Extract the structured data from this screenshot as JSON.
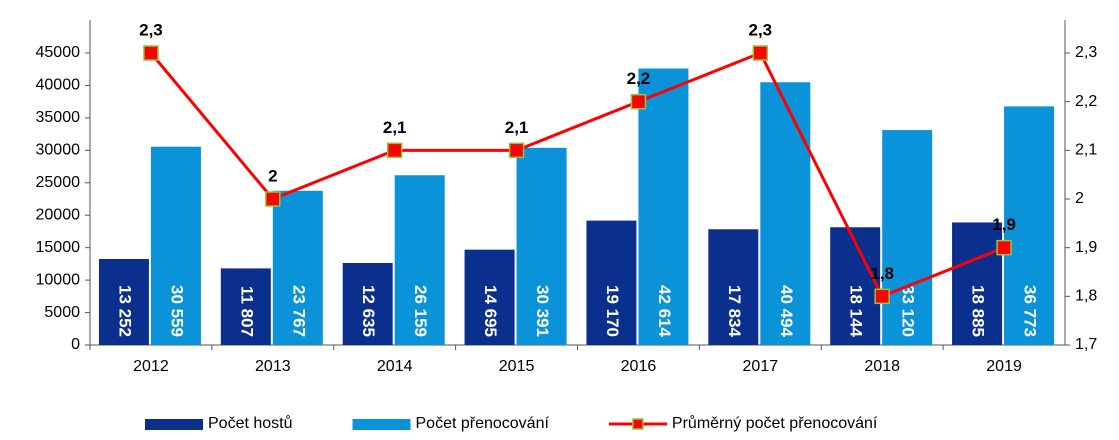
{
  "chart_data": {
    "type": "bar",
    "categories": [
      "2012",
      "2013",
      "2014",
      "2015",
      "2016",
      "2017",
      "2018",
      "2019"
    ],
    "series": [
      {
        "name": "Počet hostů",
        "type": "bar",
        "color": "#0a2f8c",
        "values": [
          13252,
          11807,
          12635,
          14695,
          19170,
          17834,
          18144,
          18885
        ],
        "value_labels": [
          "13 252",
          "11 807",
          "12 635",
          "14 695",
          "19 170",
          "17 834",
          "18 144",
          "18 885"
        ]
      },
      {
        "name": "Počet přenocování",
        "type": "bar",
        "color": "#0a93d8",
        "values": [
          30559,
          23767,
          26159,
          30391,
          42614,
          40494,
          33120,
          36773
        ],
        "value_labels": [
          "30 559",
          "23 767",
          "26 159",
          "30 391",
          "42 614",
          "40 494",
          "33 120",
          "36 773"
        ]
      },
      {
        "name": "Průměrný počet přenocování",
        "type": "line",
        "axis": "y2",
        "color": "#ff0000",
        "marker_edge": "#8dc63f",
        "values": [
          2.3,
          2,
          2.1,
          2.1,
          2.2,
          2.3,
          1.8,
          1.9
        ],
        "value_labels": [
          "2,3",
          "2",
          "2,1",
          "2,1",
          "2,2",
          "2,3",
          "1,8",
          "1,9"
        ]
      }
    ],
    "ylim": [
      0,
      45000
    ],
    "yticks": [
      0,
      5000,
      10000,
      15000,
      20000,
      25000,
      30000,
      35000,
      40000,
      45000
    ],
    "y2lim": [
      1.7,
      2.3
    ],
    "y2ticks": [
      {
        "value": 1.7,
        "label": "1,7"
      },
      {
        "value": 1.8,
        "label": "1,8"
      },
      {
        "value": 1.9,
        "label": "1,9"
      },
      2,
      {
        "value": 2.1,
        "label": "2,1"
      },
      {
        "value": 2.2,
        "label": "2,2"
      },
      {
        "value": 2.3,
        "label": "2,3"
      }
    ]
  }
}
